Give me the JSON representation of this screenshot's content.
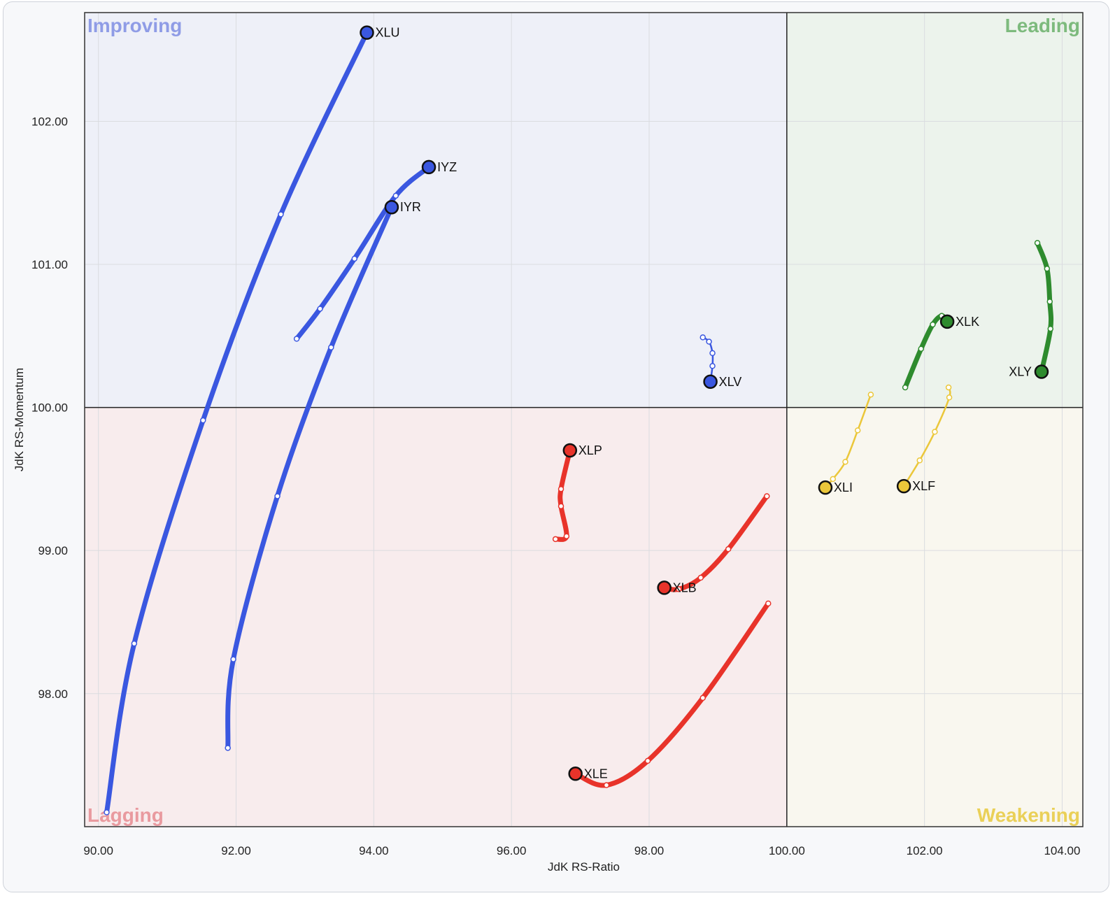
{
  "chart_data": {
    "type": "scatter",
    "title": "",
    "xlabel": "JdK RS-Ratio",
    "ylabel": "JdK RS-Momentum",
    "xlim": [
      89.8,
      104.3
    ],
    "ylim": [
      97.07,
      102.76
    ],
    "xticks": [
      90,
      92,
      94,
      96,
      98,
      100,
      102,
      104
    ],
    "yticks": [
      98,
      99,
      100,
      101,
      102
    ],
    "x_tick_labels": [
      "90.00",
      "92.00",
      "94.00",
      "96.00",
      "98.00",
      "100.00",
      "102.00",
      "104.00"
    ],
    "y_tick_labels": [
      "98.00",
      "99.00",
      "100.00",
      "101.00",
      "102.00"
    ],
    "center": [
      100,
      100
    ],
    "grid": true,
    "quadrants": [
      {
        "name": "Improving",
        "position": "top-left",
        "background": "#eef0f8",
        "label_color": "#8f9ce6"
      },
      {
        "name": "Leading",
        "position": "top-right",
        "background": "#ecf3ec",
        "label_color": "#7dba7d"
      },
      {
        "name": "Lagging",
        "position": "bottom-left",
        "background": "#f8eced",
        "label_color": "#e99a9f"
      },
      {
        "name": "Weakening",
        "position": "bottom-right",
        "background": "#f9f7ef",
        "label_color": "#ead058"
      }
    ],
    "series": [
      {
        "name": "XLU",
        "color": "#3a57e0",
        "weight": "thick",
        "label_side": "right",
        "x": [
          90.12,
          90.52,
          91.52,
          92.65,
          93.9
        ],
        "y": [
          97.17,
          98.35,
          99.91,
          101.35,
          102.62
        ]
      },
      {
        "name": "IYZ",
        "color": "#3a57e0",
        "weight": "thick",
        "label_side": "right",
        "x": [
          92.88,
          93.22,
          93.72,
          94.32,
          94.8
        ],
        "y": [
          100.48,
          100.69,
          101.04,
          101.48,
          101.68
        ]
      },
      {
        "name": "IYR",
        "color": "#3a57e0",
        "weight": "thick",
        "label_side": "right",
        "x": [
          91.88,
          91.96,
          92.6,
          93.38,
          94.26
        ],
        "y": [
          97.62,
          98.24,
          99.38,
          100.42,
          101.4
        ]
      },
      {
        "name": "XLV",
        "color": "#3a57e0",
        "weight": "thin",
        "label_side": "right",
        "x": [
          98.78,
          98.87,
          98.92,
          98.92,
          98.89
        ],
        "y": [
          100.49,
          100.46,
          100.38,
          100.29,
          100.18
        ]
      },
      {
        "name": "XLK",
        "color": "#2e8b2e",
        "weight": "thick",
        "label_side": "right",
        "x": [
          101.72,
          101.95,
          102.12,
          102.25,
          102.33
        ],
        "y": [
          100.14,
          100.41,
          100.58,
          100.64,
          100.6
        ]
      },
      {
        "name": "XLY",
        "color": "#2e8b2e",
        "weight": "thick",
        "label_side": "left",
        "x": [
          103.64,
          103.78,
          103.82,
          103.83,
          103.7
        ],
        "y": [
          101.15,
          100.97,
          100.74,
          100.55,
          100.25
        ]
      },
      {
        "name": "XLI",
        "color": "#ebc73a",
        "weight": "thin",
        "label_side": "right",
        "x": [
          101.22,
          101.03,
          100.85,
          100.67,
          100.56
        ],
        "y": [
          100.09,
          99.84,
          99.62,
          99.5,
          99.44
        ]
      },
      {
        "name": "XLF",
        "color": "#ebc73a",
        "weight": "thin",
        "label_side": "right",
        "x": [
          102.35,
          102.36,
          102.15,
          101.93,
          101.7
        ],
        "y": [
          100.14,
          100.07,
          99.83,
          99.63,
          99.45
        ]
      },
      {
        "name": "XLP",
        "color": "#e8332a",
        "weight": "thick",
        "label_side": "right",
        "x": [
          96.64,
          96.8,
          96.72,
          96.72,
          96.85
        ],
        "y": [
          99.08,
          99.1,
          99.31,
          99.43,
          99.7
        ]
      },
      {
        "name": "XLB",
        "color": "#e8332a",
        "weight": "thick",
        "label_side": "right",
        "x": [
          99.71,
          99.15,
          98.75,
          98.43,
          98.22
        ],
        "y": [
          99.38,
          99.01,
          98.81,
          98.73,
          98.74
        ]
      },
      {
        "name": "XLE",
        "color": "#e8332a",
        "weight": "thick",
        "label_side": "right",
        "x": [
          99.73,
          98.78,
          97.98,
          97.38,
          96.93
        ],
        "y": [
          98.63,
          97.97,
          97.53,
          97.36,
          97.44
        ]
      }
    ]
  }
}
